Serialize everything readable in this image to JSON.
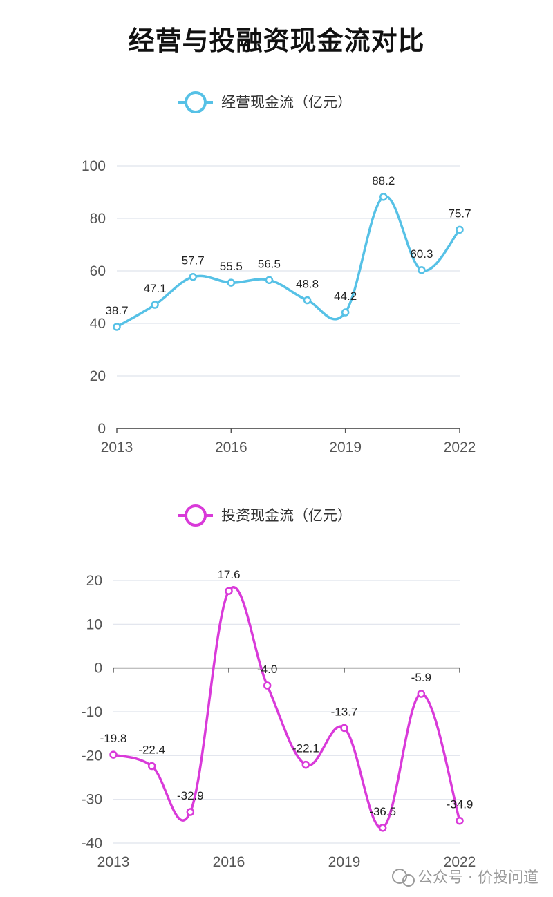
{
  "title": "经营与投融资现金流对比",
  "watermark": "公众号 · 价投问道",
  "chart_data": [
    {
      "type": "line",
      "title": "",
      "x": [
        2013,
        2014,
        2015,
        2016,
        2017,
        2018,
        2019,
        2020,
        2021,
        2022
      ],
      "x_ticks": [
        "2013",
        "2016",
        "2019",
        "2022"
      ],
      "y_ticks": [
        "0",
        "20",
        "40",
        "60",
        "80",
        "100"
      ],
      "ylim": [
        0,
        100
      ],
      "grid": true,
      "legend_position": "top-center",
      "series": [
        {
          "name": "经营现金流（亿元）",
          "color": "#56c1e6",
          "values": [
            38.7,
            47.1,
            57.7,
            55.5,
            56.5,
            48.8,
            44.2,
            88.2,
            60.3,
            75.7
          ],
          "labels": [
            "38.7",
            "47.1",
            "57.7",
            "55.5",
            "56.5",
            "48.8",
            "44.2",
            "88.2",
            "60.3",
            "75.7"
          ]
        }
      ]
    },
    {
      "type": "line",
      "title": "",
      "x": [
        2013,
        2014,
        2015,
        2016,
        2017,
        2018,
        2019,
        2020,
        2021,
        2022
      ],
      "x_ticks": [
        "2013",
        "2016",
        "2019",
        "2022"
      ],
      "y_ticks": [
        "-40",
        "-30",
        "-20",
        "-10",
        "0",
        "10",
        "20"
      ],
      "ylim": [
        -40,
        20
      ],
      "grid": true,
      "legend_position": "top-center",
      "series": [
        {
          "name": "投资现金流（亿元）",
          "color": "#d93ad9",
          "values": [
            -19.8,
            -22.4,
            -32.9,
            17.6,
            -4.0,
            -22.1,
            -13.7,
            -36.5,
            -5.9,
            -34.9
          ],
          "labels": [
            "-19.8",
            "-22.4",
            "-32.9",
            "17.6",
            "-4.0",
            "-22.1",
            "-13.7",
            "-36.5",
            "-5.9",
            "-34.9"
          ]
        }
      ]
    }
  ]
}
